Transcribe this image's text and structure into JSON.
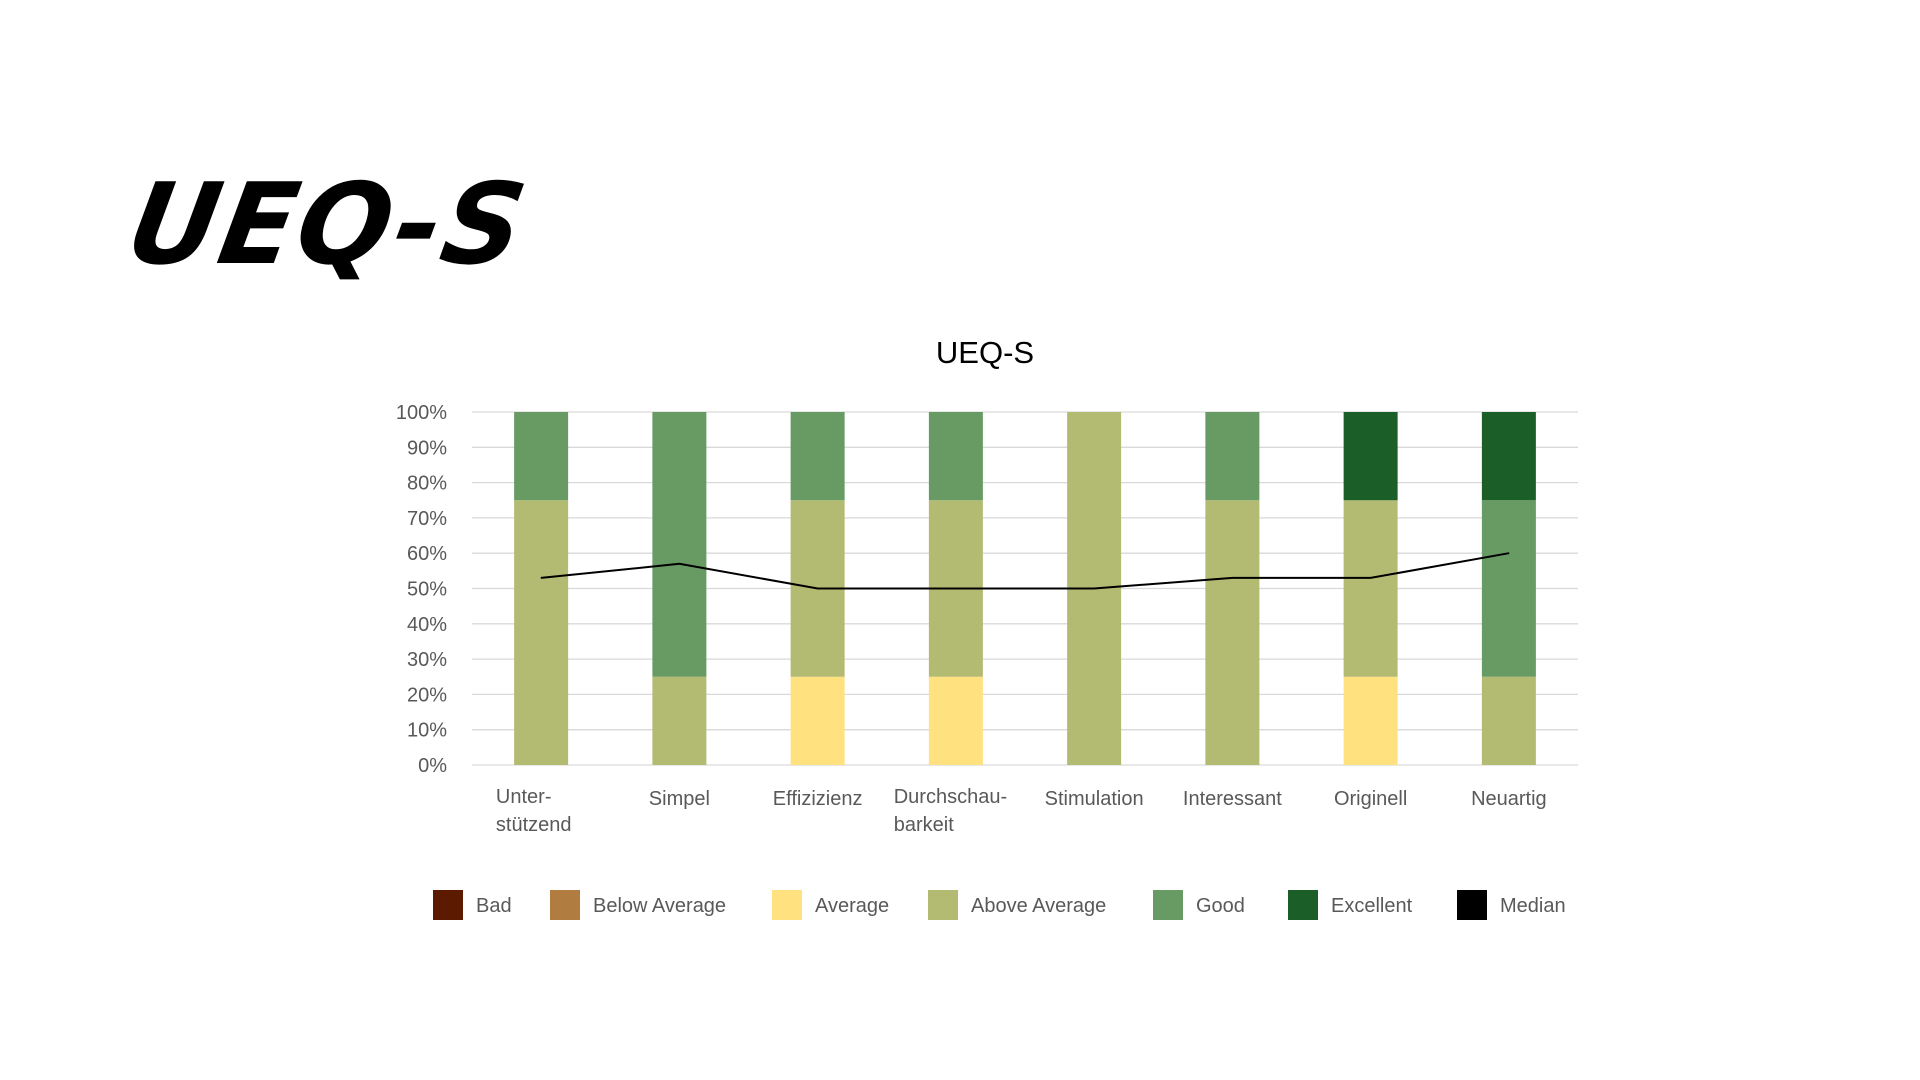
{
  "slide": {
    "title": "UEQ-S"
  },
  "chart_data": {
    "type": "bar",
    "stacked": true,
    "title": "UEQ-S",
    "categories": [
      [
        "Unter-",
        "stützend"
      ],
      [
        "Simpel"
      ],
      [
        "Effizizienz"
      ],
      [
        "Durchschau-",
        "barkeit"
      ],
      [
        "Stimulation"
      ],
      [
        "Interessant"
      ],
      [
        "Originell"
      ],
      [
        "Neuartig"
      ]
    ],
    "ylim": [
      0,
      100
    ],
    "y_ticks": [
      0,
      10,
      20,
      30,
      40,
      50,
      60,
      70,
      80,
      90,
      100
    ],
    "y_tick_suffix": "%",
    "grid": true,
    "legend_position": "bottom",
    "series": [
      {
        "name": "Bad",
        "color": "#5c1a00",
        "values": [
          0,
          0,
          0,
          0,
          0,
          0,
          0,
          0
        ]
      },
      {
        "name": "Below Average",
        "color": "#b07c40",
        "values": [
          0,
          0,
          0,
          0,
          0,
          0,
          0,
          0
        ]
      },
      {
        "name": "Average",
        "color": "#ffe17f",
        "values": [
          0,
          0,
          25,
          25,
          0,
          0,
          25,
          0
        ]
      },
      {
        "name": "Above Average",
        "color": "#b3bb72",
        "values": [
          75,
          25,
          50,
          50,
          100,
          75,
          50,
          25
        ]
      },
      {
        "name": "Good",
        "color": "#689a63",
        "values": [
          25,
          75,
          25,
          25,
          0,
          25,
          0,
          50
        ]
      },
      {
        "name": "Excellent",
        "color": "#1b5e28",
        "values": [
          0,
          0,
          0,
          0,
          0,
          0,
          25,
          25
        ]
      }
    ],
    "line_series": {
      "name": "Median",
      "color": "#000000",
      "values": [
        53,
        57,
        50,
        50,
        50,
        53,
        53,
        60
      ]
    }
  }
}
